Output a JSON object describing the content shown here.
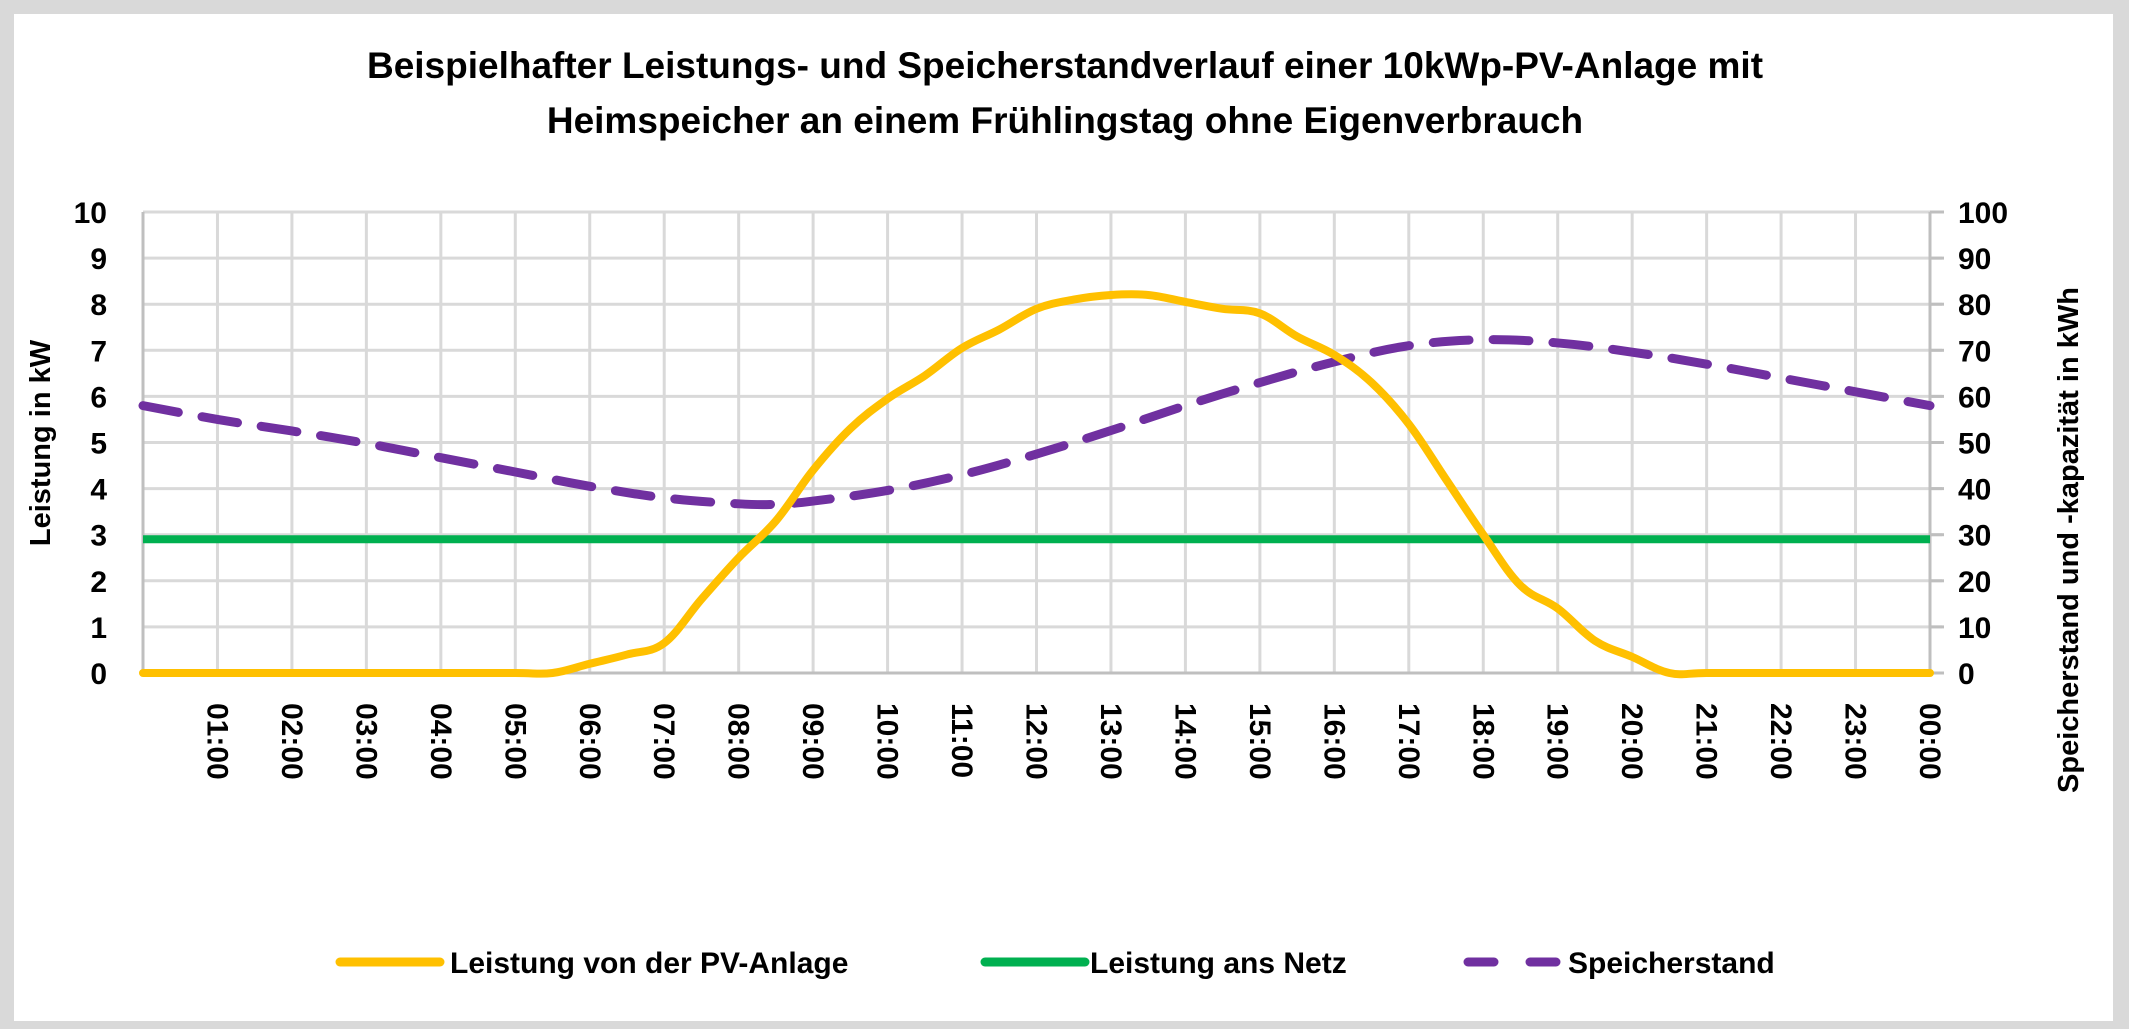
{
  "chart_data": {
    "type": "line",
    "title": "Beispielhafter Leistungs- und Speicherstandverlauf einer 10kWp-PV-Anlage mit Heimspeicher an einem Frühlingstag ohne Eigenverbrauch",
    "title_lines": [
      "Beispielhafter Leistungs- und Speicherstandverlauf einer 10kWp-PV-Anlage mit",
      "Heimspeicher an einem Frühlingstag ohne Eigenverbrauch"
    ],
    "xlabel": "",
    "ylabel": "Leistung in kW",
    "y2label": "Speicherstand und -kapazität in kWh",
    "ylim": [
      0,
      10
    ],
    "y2lim": [
      0,
      100
    ],
    "yticks": [
      "0",
      "1",
      "2",
      "3",
      "4",
      "5",
      "6",
      "7",
      "8",
      "9",
      "10"
    ],
    "y2ticks": [
      "0",
      "10",
      "20",
      "30",
      "40",
      "50",
      "60",
      "70",
      "80",
      "90",
      "100"
    ],
    "xticks": [
      "01:00",
      "02:00",
      "03:00",
      "04:00",
      "05:00",
      "06:00",
      "07:00",
      "08:00",
      "09:00",
      "10:00",
      "11:00",
      "12:00",
      "13:00",
      "14:00",
      "15:00",
      "16:00",
      "17:00",
      "18:00",
      "19:00",
      "20:00",
      "21:00",
      "22:00",
      "23:00",
      "00:00"
    ],
    "x_range_hours": [
      0,
      24
    ],
    "grid": true,
    "legend_position": "bottom",
    "series": [
      {
        "name": "Leistung von der PV-Anlage",
        "axis": "left",
        "color": "#FFC000",
        "style": "solid",
        "x": [
          0,
          1,
          2,
          3,
          4,
          5,
          5.5,
          6,
          6.5,
          7,
          7.5,
          8,
          8.5,
          9,
          9.5,
          10,
          10.5,
          11,
          11.5,
          12,
          12.5,
          13,
          13.5,
          14,
          14.5,
          15,
          15.5,
          16,
          16.5,
          17,
          17.5,
          18,
          18.5,
          19,
          19.5,
          20,
          20.5,
          21,
          22,
          23,
          24
        ],
        "values": [
          0,
          0,
          0,
          0,
          0,
          0,
          0,
          0.2,
          0.4,
          0.65,
          1.6,
          2.5,
          3.3,
          4.4,
          5.3,
          5.95,
          6.45,
          7.05,
          7.45,
          7.9,
          8.1,
          8.2,
          8.2,
          8.05,
          7.9,
          7.8,
          7.3,
          6.9,
          6.3,
          5.4,
          4.2,
          3.0,
          1.9,
          1.4,
          0.7,
          0.35,
          0,
          0,
          0,
          0,
          0
        ]
      },
      {
        "name": "Leistung ans Netz",
        "axis": "left",
        "color": "#00B050",
        "style": "solid",
        "x": [
          0,
          24
        ],
        "values": [
          2.9,
          2.9
        ]
      },
      {
        "name": "Speicherstand",
        "axis": "right",
        "color": "#7030A0",
        "style": "dashed",
        "x": [
          0,
          1,
          2,
          3,
          4,
          5,
          6,
          7,
          8,
          8.5,
          9,
          10,
          11,
          12,
          13,
          14,
          15,
          16,
          17,
          18,
          19,
          20,
          21,
          22,
          23,
          24
        ],
        "values": [
          58,
          55,
          52.5,
          49.8,
          46.7,
          43.6,
          40.5,
          38,
          36.7,
          36.6,
          37.3,
          39.6,
          43,
          47.5,
          52.6,
          58,
          63,
          67.5,
          71,
          72.3,
          71.6,
          69.6,
          67,
          64,
          61,
          58
        ]
      }
    ]
  }
}
